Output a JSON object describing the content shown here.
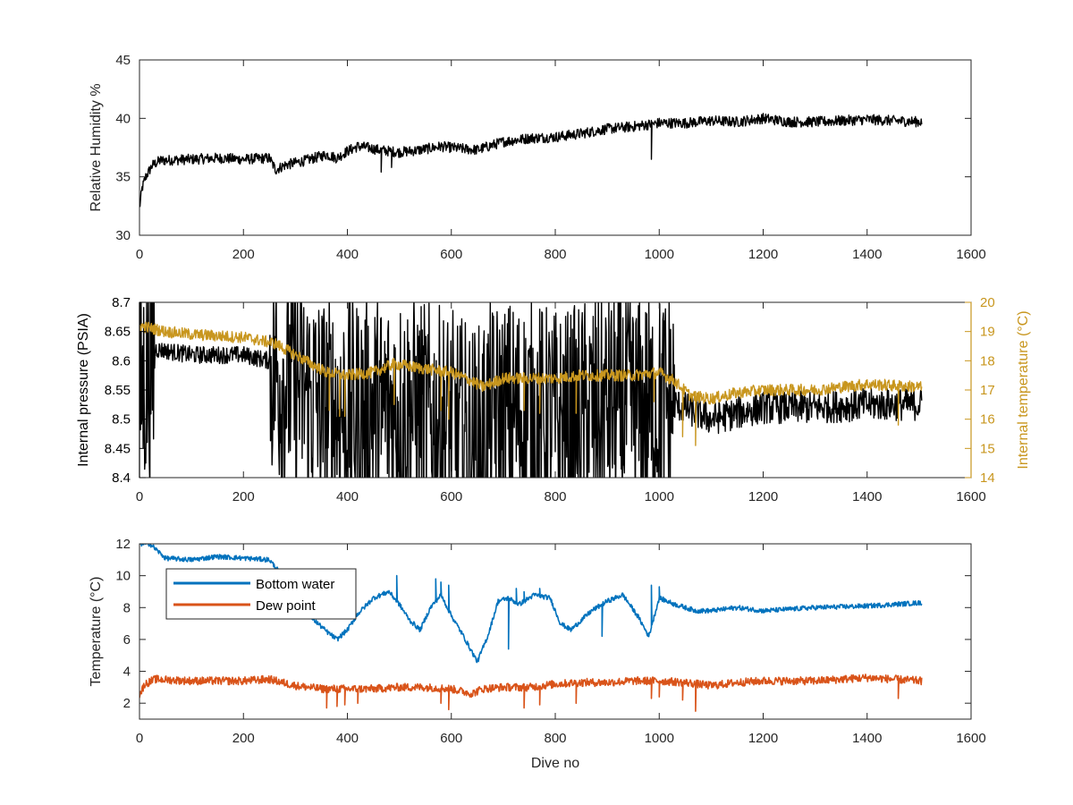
{
  "chart_data": [
    {
      "type": "line",
      "ylabel": "Relative Humidity %",
      "xlim": [
        0,
        1600
      ],
      "ylim": [
        30,
        45
      ],
      "xticks": [
        0,
        200,
        400,
        600,
        800,
        1000,
        1200,
        1400,
        1600
      ],
      "yticks": [
        30,
        35,
        40,
        45
      ],
      "noise": 0.45,
      "series": [
        {
          "color": "#000000",
          "points": [
            [
              0,
              32.3
            ],
            [
              5,
              34.0
            ],
            [
              12,
              35.0
            ],
            [
              25,
              36.0
            ],
            [
              40,
              36.4
            ],
            [
              100,
              36.5
            ],
            [
              150,
              36.6
            ],
            [
              200,
              36.5
            ],
            [
              250,
              36.6
            ],
            [
              262,
              35.6
            ],
            [
              280,
              36.0
            ],
            [
              320,
              36.4
            ],
            [
              360,
              36.9
            ],
            [
              380,
              36.6
            ],
            [
              400,
              37.2
            ],
            [
              420,
              37.6
            ],
            [
              440,
              37.5
            ],
            [
              460,
              37.3
            ],
            [
              500,
              37.1
            ],
            [
              540,
              37.3
            ],
            [
              580,
              37.6
            ],
            [
              620,
              37.4
            ],
            [
              650,
              37.3
            ],
            [
              700,
              38.0
            ],
            [
              750,
              38.3
            ],
            [
              800,
              38.4
            ],
            [
              850,
              38.7
            ],
            [
              900,
              39.1
            ],
            [
              950,
              39.3
            ],
            [
              1000,
              39.6
            ],
            [
              1050,
              39.6
            ],
            [
              1100,
              39.8
            ],
            [
              1150,
              39.7
            ],
            [
              1200,
              40.0
            ],
            [
              1250,
              39.7
            ],
            [
              1300,
              39.7
            ],
            [
              1350,
              39.8
            ],
            [
              1400,
              39.9
            ],
            [
              1450,
              39.8
            ],
            [
              1505,
              39.7
            ]
          ],
          "spikes": [
            [
              465,
              35.4
            ],
            [
              485,
              35.8
            ],
            [
              985,
              36.5
            ]
          ]
        }
      ]
    },
    {
      "type": "line",
      "ylabel": "Internal pressure (PSIA)",
      "ylabel_right": "Internal temperature (°C)",
      "xlim": [
        0,
        1600
      ],
      "ylim": [
        8.4,
        8.7
      ],
      "ylim_right": [
        14,
        20
      ],
      "xticks": [
        0,
        200,
        400,
        600,
        800,
        1000,
        1200,
        1400,
        1600
      ],
      "yticks": [
        "8.4",
        "8.45",
        "8.5",
        "8.55",
        "8.6",
        "8.65",
        "8.7"
      ],
      "yticks_right": [
        14,
        15,
        16,
        17,
        18,
        19,
        20
      ],
      "colors": {
        "left_axis": "#000000",
        "right_axis": "#c8961e"
      },
      "series": [
        {
          "axis": "left",
          "color": "#000000",
          "points": [
            [
              0,
              8.54
            ],
            [
              10,
              8.57
            ],
            [
              25,
              8.59
            ],
            [
              30,
              8.62
            ],
            [
              100,
              8.61
            ],
            [
              200,
              8.61
            ],
            [
              250,
              8.6
            ],
            [
              270,
              8.57
            ],
            [
              300,
              8.56
            ],
            [
              330,
              8.54
            ],
            [
              350,
              8.52
            ],
            [
              400,
              8.51
            ],
            [
              440,
              8.515
            ],
            [
              480,
              8.52
            ],
            [
              520,
              8.52
            ],
            [
              560,
              8.5
            ],
            [
              600,
              8.49
            ],
            [
              650,
              8.46
            ],
            [
              670,
              8.5
            ],
            [
              720,
              8.51
            ],
            [
              780,
              8.5
            ],
            [
              820,
              8.49
            ],
            [
              860,
              8.51
            ],
            [
              900,
              8.52
            ],
            [
              950,
              8.52
            ],
            [
              1000,
              8.52
            ],
            [
              1020,
              8.53
            ],
            [
              1100,
              8.5
            ],
            [
              1150,
              8.51
            ],
            [
              1200,
              8.52
            ],
            [
              1300,
              8.52
            ],
            [
              1400,
              8.525
            ],
            [
              1505,
              8.525
            ]
          ],
          "bands": [
            {
              "from": 30,
              "to": 250,
              "amp": 0.015
            },
            {
              "from": 1030,
              "to": 1505,
              "amp": 0.028
            }
          ],
          "spikes": [
            [
              465,
              8.44
            ],
            [
              985,
              8.43
            ]
          ]
        },
        {
          "axis": "right",
          "color": "#c8961e",
          "points": [
            [
              0,
              19.2
            ],
            [
              50,
              19.0
            ],
            [
              100,
              18.9
            ],
            [
              200,
              18.8
            ],
            [
              260,
              18.6
            ],
            [
              300,
              18.2
            ],
            [
              340,
              17.8
            ],
            [
              360,
              17.6
            ],
            [
              400,
              17.5
            ],
            [
              450,
              17.6
            ],
            [
              490,
              17.9
            ],
            [
              520,
              17.8
            ],
            [
              560,
              17.7
            ],
            [
              600,
              17.6
            ],
            [
              640,
              17.3
            ],
            [
              660,
              17.1
            ],
            [
              700,
              17.4
            ],
            [
              760,
              17.4
            ],
            [
              800,
              17.4
            ],
            [
              850,
              17.5
            ],
            [
              900,
              17.5
            ],
            [
              950,
              17.5
            ],
            [
              1000,
              17.6
            ],
            [
              1030,
              17.3
            ],
            [
              1060,
              16.8
            ],
            [
              1100,
              16.7
            ],
            [
              1150,
              16.9
            ],
            [
              1200,
              17.0
            ],
            [
              1300,
              17.0
            ],
            [
              1400,
              17.2
            ],
            [
              1505,
              17.1
            ]
          ],
          "spikes": [
            [
              365,
              16.3
            ],
            [
              385,
              16.1
            ],
            [
              395,
              16.1
            ],
            [
              490,
              16.5
            ],
            [
              580,
              16.3
            ],
            [
              595,
              16.0
            ],
            [
              740,
              16.3
            ],
            [
              770,
              16.2
            ],
            [
              840,
              16.2
            ],
            [
              990,
              16.6
            ],
            [
              1045,
              15.4
            ],
            [
              1070,
              15.1
            ],
            [
              1460,
              15.8
            ]
          ]
        }
      ]
    },
    {
      "type": "line",
      "xlabel": "Dive no",
      "ylabel": "Temperature (°C)",
      "xlim": [
        0,
        1600
      ],
      "ylim": [
        1,
        12
      ],
      "xticks": [
        0,
        200,
        400,
        600,
        800,
        1000,
        1200,
        1400,
        1600
      ],
      "yticks": [
        2,
        4,
        6,
        8,
        10,
        12
      ],
      "legend": {
        "placement": "top-left",
        "entries": [
          "Bottom water",
          "Dew point"
        ]
      },
      "series": [
        {
          "name": "Bottom water",
          "color": "#0072bd",
          "noise": 0.15,
          "points": [
            [
              0,
              12.0
            ],
            [
              20,
              12.0
            ],
            [
              50,
              11.1
            ],
            [
              100,
              11.0
            ],
            [
              150,
              11.2
            ],
            [
              200,
              11.1
            ],
            [
              250,
              11.0
            ],
            [
              270,
              10.2
            ],
            [
              300,
              8.5
            ],
            [
              330,
              7.4
            ],
            [
              360,
              6.5
            ],
            [
              380,
              6.0
            ],
            [
              400,
              6.6
            ],
            [
              420,
              7.6
            ],
            [
              450,
              8.6
            ],
            [
              480,
              9.0
            ],
            [
              500,
              8.2
            ],
            [
              520,
              7.2
            ],
            [
              540,
              6.6
            ],
            [
              560,
              8.0
            ],
            [
              580,
              8.8
            ],
            [
              600,
              7.5
            ],
            [
              620,
              6.4
            ],
            [
              650,
              4.6
            ],
            [
              670,
              6.2
            ],
            [
              690,
              8.4
            ],
            [
              710,
              8.6
            ],
            [
              730,
              8.2
            ],
            [
              760,
              8.8
            ],
            [
              790,
              8.6
            ],
            [
              810,
              7.0
            ],
            [
              830,
              6.6
            ],
            [
              850,
              7.2
            ],
            [
              870,
              7.8
            ],
            [
              900,
              8.4
            ],
            [
              930,
              8.8
            ],
            [
              960,
              7.4
            ],
            [
              980,
              6.2
            ],
            [
              1000,
              8.6
            ],
            [
              1030,
              8.2
            ],
            [
              1070,
              7.8
            ],
            [
              1100,
              7.8
            ],
            [
              1150,
              8.0
            ],
            [
              1200,
              7.8
            ],
            [
              1300,
              8.0
            ],
            [
              1400,
              8.1
            ],
            [
              1505,
              8.3
            ]
          ],
          "spikes": [
            [
              495,
              10.0
            ],
            [
              570,
              9.8
            ],
            [
              580,
              9.6
            ],
            [
              595,
              9.4
            ],
            [
              710,
              5.4
            ],
            [
              725,
              9.2
            ],
            [
              740,
              9.0
            ],
            [
              770,
              9.2
            ],
            [
              880,
              8.0
            ],
            [
              890,
              6.2
            ],
            [
              985,
              9.4
            ],
            [
              1000,
              9.3
            ]
          ]
        },
        {
          "name": "Dew point",
          "color": "#d95319",
          "noise": 0.25,
          "points": [
            [
              0,
              2.5
            ],
            [
              10,
              3.2
            ],
            [
              30,
              3.5
            ],
            [
              100,
              3.4
            ],
            [
              200,
              3.4
            ],
            [
              250,
              3.5
            ],
            [
              300,
              3.1
            ],
            [
              350,
              2.9
            ],
            [
              400,
              2.9
            ],
            [
              450,
              2.9
            ],
            [
              500,
              3.0
            ],
            [
              550,
              3.0
            ],
            [
              600,
              2.9
            ],
            [
              640,
              2.6
            ],
            [
              660,
              2.9
            ],
            [
              700,
              3.0
            ],
            [
              750,
              3.0
            ],
            [
              800,
              3.2
            ],
            [
              850,
              3.3
            ],
            [
              900,
              3.3
            ],
            [
              950,
              3.4
            ],
            [
              1000,
              3.4
            ],
            [
              1050,
              3.3
            ],
            [
              1100,
              3.1
            ],
            [
              1150,
              3.3
            ],
            [
              1200,
              3.4
            ],
            [
              1300,
              3.4
            ],
            [
              1400,
              3.6
            ],
            [
              1505,
              3.4
            ]
          ],
          "spikes": [
            [
              360,
              1.7
            ],
            [
              380,
              1.8
            ],
            [
              395,
              1.9
            ],
            [
              420,
              2.0
            ],
            [
              580,
              2.0
            ],
            [
              595,
              1.6
            ],
            [
              740,
              1.7
            ],
            [
              770,
              1.9
            ],
            [
              840,
              2.0
            ],
            [
              985,
              2.3
            ],
            [
              1000,
              2.4
            ],
            [
              1045,
              2.2
            ],
            [
              1070,
              1.5
            ],
            [
              1460,
              2.3
            ]
          ]
        }
      ]
    }
  ]
}
